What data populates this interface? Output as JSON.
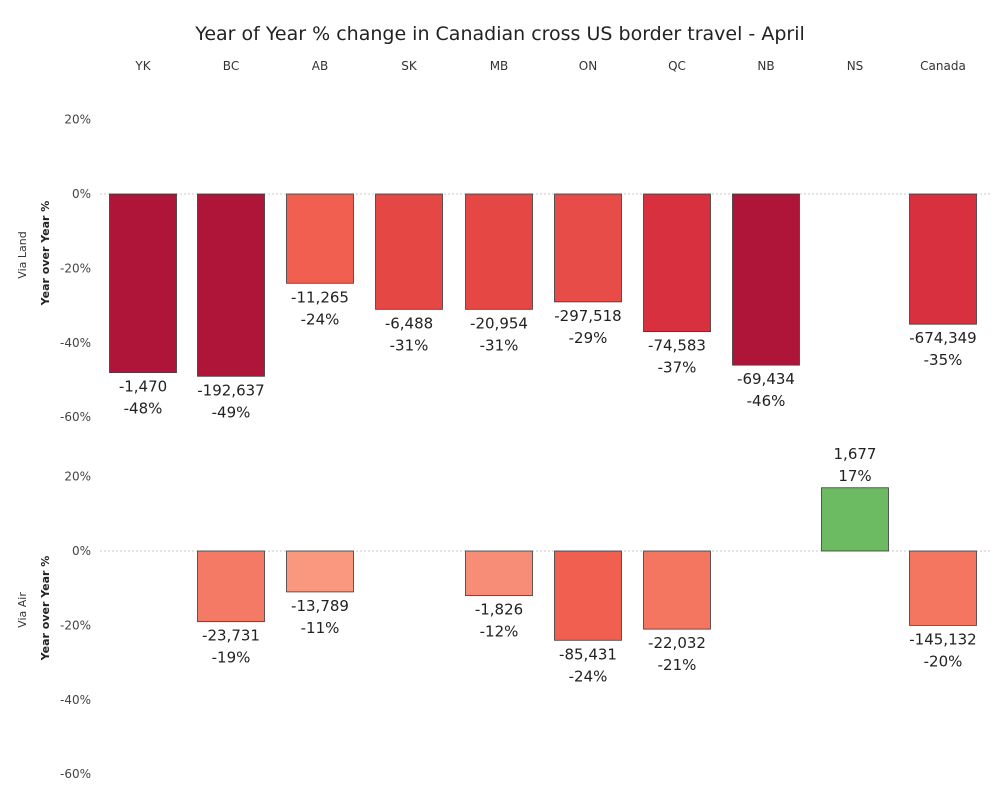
{
  "chart_data": {
    "type": "bar",
    "title": "Year of Year % change in Canadian cross US border travel - April",
    "categories": [
      "YK",
      "BC",
      "AB",
      "SK",
      "MB",
      "ON",
      "QC",
      "NB",
      "NS",
      "Canada"
    ],
    "ylabel": "Year over Year %",
    "ylim": [
      -60,
      20
    ],
    "yticks": [
      "20%",
      "0%",
      "-20%",
      "-40%",
      "-60%"
    ],
    "ytick_values": [
      20,
      0,
      -20,
      -40,
      -60
    ],
    "series": [
      {
        "name": "Via Land",
        "values": [
          -48,
          -49,
          -24,
          -31,
          -31,
          -29,
          -37,
          -46,
          null,
          -35
        ],
        "counts": [
          "-1,470",
          "-192,637",
          "-11,265",
          "-6,488",
          "-20,954",
          "-297,518",
          "-74,583",
          "-69,434",
          null,
          "-674,349"
        ],
        "pct_labels": [
          "-48%",
          "-49%",
          "-24%",
          "-31%",
          "-31%",
          "-29%",
          "-37%",
          "-46%",
          null,
          "-35%"
        ]
      },
      {
        "name": "Via Air",
        "values": [
          null,
          -19,
          -11,
          null,
          -12,
          -24,
          -21,
          null,
          17,
          -20
        ],
        "counts": [
          null,
          "-23,731",
          "-13,789",
          null,
          "-1,826",
          "-85,431",
          "-22,032",
          null,
          "1,677",
          "-145,132"
        ],
        "pct_labels": [
          null,
          "-19%",
          "-11%",
          null,
          "-12%",
          "-24%",
          "-21%",
          null,
          "17%",
          "-20%"
        ]
      }
    ],
    "colors": {
      "positive": "#6cba62",
      "neg_light": "#f8957e",
      "neg_mid": "#f06a55",
      "neg_strong": "#e0403f",
      "neg_dark": "#af1538"
    }
  }
}
